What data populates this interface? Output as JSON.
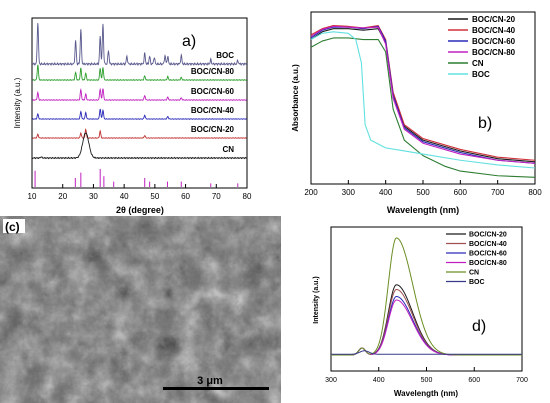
{
  "panels": {
    "a": {
      "letter": "a)",
      "xlabel": "2θ (degree)",
      "ylabel": "Intensity (a.u.)",
      "xticks": [
        "10",
        "20",
        "30",
        "40",
        "50",
        "60",
        "70",
        "80"
      ]
    },
    "b": {
      "letter": "b)",
      "xlabel": "Wavelength (nm)",
      "ylabel": "Absorbance (a.u.)",
      "xticks": [
        "200",
        "300",
        "400",
        "500",
        "600",
        "700",
        "800"
      ]
    },
    "c": {
      "letter": "(c)",
      "scalebar": "3 μm"
    },
    "d": {
      "letter": "d)",
      "xlabel": "Wavelength (nm)",
      "ylabel": "Intensity (a.u.)",
      "xticks": [
        "300",
        "400",
        "500",
        "600",
        "700"
      ]
    }
  },
  "chart_data": [
    {
      "panel": "a",
      "type": "line",
      "xlim": [
        10,
        80
      ],
      "xlabel": "2θ (degree)",
      "ylabel": "Intensity (a.u.)",
      "reference_sticks": [
        {
          "x": 11.0,
          "h": 0.9
        },
        {
          "x": 24.1,
          "h": 0.5
        },
        {
          "x": 25.9,
          "h": 0.8
        },
        {
          "x": 32.2,
          "h": 1.0
        },
        {
          "x": 33.4,
          "h": 0.6
        },
        {
          "x": 36.6,
          "h": 0.3
        },
        {
          "x": 46.7,
          "h": 0.5
        },
        {
          "x": 48.3,
          "h": 0.3
        },
        {
          "x": 54.1,
          "h": 0.3
        },
        {
          "x": 58.6,
          "h": 0.3
        },
        {
          "x": 68.2,
          "h": 0.2
        },
        {
          "x": 77.0,
          "h": 0.2
        }
      ],
      "series": [
        {
          "name": "BOC",
          "color": "#5a5a8e",
          "offset": 5,
          "amp": 1.0,
          "peaks": [
            {
              "x": 11.9,
              "h": 1.0
            },
            {
              "x": 24.2,
              "h": 0.55
            },
            {
              "x": 25.9,
              "h": 0.82
            },
            {
              "x": 32.2,
              "h": 0.65
            },
            {
              "x": 33.1,
              "h": 0.95
            },
            {
              "x": 34.9,
              "h": 0.32
            },
            {
              "x": 40.9,
              "h": 0.18
            },
            {
              "x": 46.7,
              "h": 0.25
            },
            {
              "x": 48.3,
              "h": 0.18
            },
            {
              "x": 49.8,
              "h": 0.16
            },
            {
              "x": 53.3,
              "h": 0.2
            },
            {
              "x": 54.2,
              "h": 0.18
            },
            {
              "x": 58.6,
              "h": 0.2
            },
            {
              "x": 68.2,
              "h": 0.1
            },
            {
              "x": 77.0,
              "h": 0.08
            }
          ]
        },
        {
          "name": "BOC/CN-80",
          "color": "#2ea02e",
          "offset": 4,
          "amp": 0.4,
          "peaks": [
            {
              "x": 11.9,
              "h": 0.9
            },
            {
              "x": 24.2,
              "h": 0.45
            },
            {
              "x": 25.9,
              "h": 0.7
            },
            {
              "x": 27.5,
              "h": 0.4
            },
            {
              "x": 32.2,
              "h": 0.7
            },
            {
              "x": 33.1,
              "h": 0.75
            },
            {
              "x": 46.7,
              "h": 0.25
            },
            {
              "x": 54.2,
              "h": 0.2
            },
            {
              "x": 58.6,
              "h": 0.15
            }
          ]
        },
        {
          "name": "BOC/CN-60",
          "color": "#c020c0",
          "offset": 3,
          "amp": 0.35,
          "peaks": [
            {
              "x": 11.9,
              "h": 0.5
            },
            {
              "x": 25.9,
              "h": 0.7
            },
            {
              "x": 27.5,
              "h": 0.4
            },
            {
              "x": 32.2,
              "h": 0.75
            },
            {
              "x": 33.1,
              "h": 0.8
            },
            {
              "x": 46.7,
              "h": 0.3
            },
            {
              "x": 54.2,
              "h": 0.2
            },
            {
              "x": 58.6,
              "h": 0.15
            }
          ]
        },
        {
          "name": "BOC/CN-40",
          "color": "#2a2ab8",
          "offset": 2,
          "amp": 0.3,
          "peaks": [
            {
              "x": 11.9,
              "h": 0.4
            },
            {
              "x": 25.9,
              "h": 0.6
            },
            {
              "x": 27.5,
              "h": 0.5
            },
            {
              "x": 32.2,
              "h": 0.8
            },
            {
              "x": 33.1,
              "h": 0.7
            },
            {
              "x": 46.7,
              "h": 0.3
            },
            {
              "x": 54.2,
              "h": 0.2
            }
          ]
        },
        {
          "name": "BOC/CN-20",
          "color": "#c03030",
          "offset": 1,
          "amp": 0.3,
          "peaks": [
            {
              "x": 11.9,
              "h": 0.3
            },
            {
              "x": 25.9,
              "h": 0.4
            },
            {
              "x": 27.5,
              "h": 0.7
            },
            {
              "x": 32.2,
              "h": 0.55
            },
            {
              "x": 46.7,
              "h": 0.2
            }
          ]
        },
        {
          "name": "CN",
          "color": "#1a1a1a",
          "offset": 0,
          "amp": 0.6,
          "peaks": [
            {
              "x": 13.0,
              "h": 0.05
            },
            {
              "x": 27.5,
              "h": 1.0
            }
          ]
        }
      ]
    },
    {
      "panel": "b",
      "type": "line",
      "xlim": [
        200,
        800
      ],
      "ylim": [
        0,
        1
      ],
      "xlabel": "Wavelength (nm)",
      "ylabel": "Absorbance (a.u.)",
      "xticks": [
        200,
        300,
        400,
        500,
        600,
        700,
        800
      ],
      "legend_position": "top-right",
      "series": [
        {
          "name": "BOC/CN-20",
          "color": "#1a1a1a",
          "points": [
            [
              200,
              0.9
            ],
            [
              230,
              0.95
            ],
            [
              260,
              0.97
            ],
            [
              300,
              0.97
            ],
            [
              340,
              0.96
            ],
            [
              380,
              0.97
            ],
            [
              400,
              0.88
            ],
            [
              420,
              0.55
            ],
            [
              450,
              0.34
            ],
            [
              500,
              0.25
            ],
            [
              600,
              0.18
            ],
            [
              700,
              0.13
            ],
            [
              800,
              0.11
            ]
          ]
        },
        {
          "name": "BOC/CN-40",
          "color": "#d0303a",
          "points": [
            [
              200,
              0.93
            ],
            [
              230,
              0.97
            ],
            [
              260,
              0.99
            ],
            [
              300,
              0.985
            ],
            [
              340,
              0.975
            ],
            [
              380,
              0.99
            ],
            [
              400,
              0.9
            ],
            [
              420,
              0.56
            ],
            [
              450,
              0.35
            ],
            [
              500,
              0.26
            ],
            [
              600,
              0.19
            ],
            [
              700,
              0.14
            ],
            [
              800,
              0.12
            ]
          ]
        },
        {
          "name": "BOC/CN-60",
          "color": "#2a2ab8",
          "points": [
            [
              200,
              0.91
            ],
            [
              230,
              0.96
            ],
            [
              260,
              0.98
            ],
            [
              300,
              0.98
            ],
            [
              340,
              0.97
            ],
            [
              380,
              0.985
            ],
            [
              400,
              0.89
            ],
            [
              420,
              0.54
            ],
            [
              450,
              0.33
            ],
            [
              500,
              0.24
            ],
            [
              600,
              0.17
            ],
            [
              700,
              0.12
            ],
            [
              800,
              0.1
            ]
          ]
        },
        {
          "name": "BOC/CN-80",
          "color": "#c020c0",
          "points": [
            [
              200,
              0.92
            ],
            [
              230,
              0.965
            ],
            [
              260,
              0.985
            ],
            [
              300,
              0.98
            ],
            [
              340,
              0.975
            ],
            [
              380,
              0.98
            ],
            [
              400,
              0.87
            ],
            [
              420,
              0.52
            ],
            [
              450,
              0.32
            ],
            [
              500,
              0.23
            ],
            [
              600,
              0.16
            ],
            [
              700,
              0.12
            ],
            [
              800,
              0.1
            ]
          ]
        },
        {
          "name": "CN",
          "color": "#2e7d32",
          "points": [
            [
              200,
              0.85
            ],
            [
              230,
              0.89
            ],
            [
              260,
              0.91
            ],
            [
              300,
              0.91
            ],
            [
              340,
              0.9
            ],
            [
              380,
              0.9
            ],
            [
              400,
              0.82
            ],
            [
              420,
              0.45
            ],
            [
              450,
              0.25
            ],
            [
              500,
              0.15
            ],
            [
              560,
              0.08
            ],
            [
              600,
              0.05
            ],
            [
              700,
              0.02
            ],
            [
              800,
              0.01
            ]
          ]
        },
        {
          "name": "BOC",
          "color": "#62e0e0",
          "points": [
            [
              200,
              0.9
            ],
            [
              230,
              0.94
            ],
            [
              260,
              0.95
            ],
            [
              300,
              0.94
            ],
            [
              320,
              0.9
            ],
            [
              335,
              0.75
            ],
            [
              345,
              0.35
            ],
            [
              360,
              0.25
            ],
            [
              400,
              0.2
            ],
            [
              450,
              0.18
            ],
            [
              500,
              0.16
            ],
            [
              600,
              0.12
            ],
            [
              700,
              0.09
            ],
            [
              800,
              0.07
            ]
          ]
        }
      ]
    },
    {
      "panel": "d",
      "type": "line",
      "xlim": [
        300,
        700
      ],
      "ylim": [
        0,
        1
      ],
      "xlabel": "Wavelength (nm)",
      "ylabel": "Intensity (a.u.)",
      "xticks": [
        300,
        400,
        500,
        600,
        700
      ],
      "legend_position": "top-right",
      "series": [
        {
          "name": "BOC/CN-20",
          "color": "#1a1a1a",
          "peak": 0.6
        },
        {
          "name": "BOC/CN-40",
          "color": "#a05050",
          "peak": 0.56
        },
        {
          "name": "BOC/CN-60",
          "color": "#2a2ab8",
          "peak": 0.5
        },
        {
          "name": "BOC/CN-80",
          "color": "#c020c0",
          "peak": 0.47
        },
        {
          "name": "CN",
          "color": "#6b8e23",
          "peak": 1.0
        },
        {
          "name": "BOC",
          "color": "#3a3a8a",
          "peak": 0.0
        }
      ]
    }
  ]
}
